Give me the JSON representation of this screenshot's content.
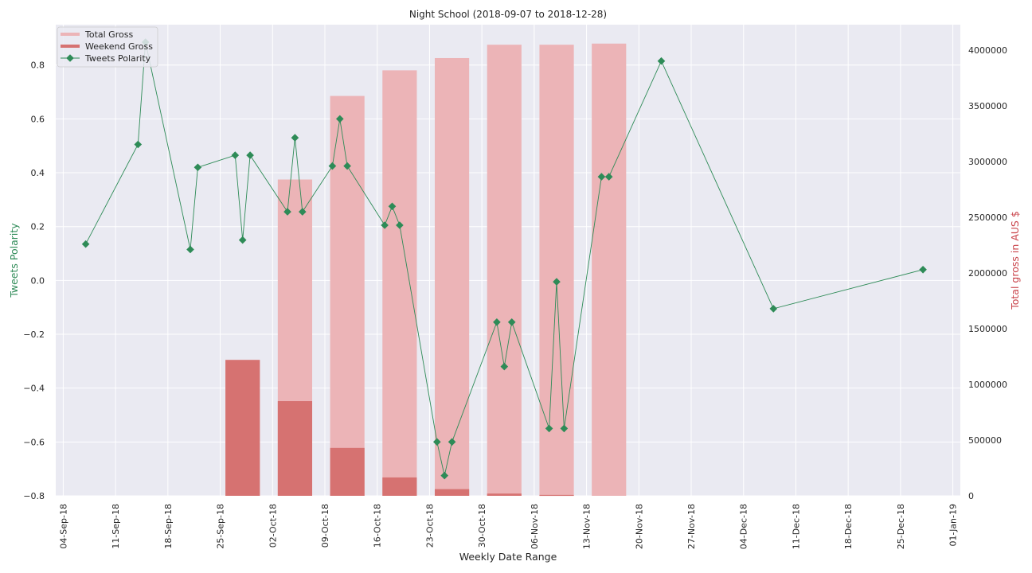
{
  "chart_data": {
    "type": "bar",
    "title": "Night School (2018-09-07 to 2018-12-28)",
    "xlabel": "Weekly Date Range",
    "ylabel_left": "Tweets Polarity",
    "ylabel_right": "Total gross in AUS $",
    "grid": true,
    "legend_position": "top-left",
    "colors": {
      "plot_background": "#eaeaf2",
      "grid": "#ffffff",
      "total_gross": "#ecb4b7",
      "weekend_gross": "#d67271",
      "polarity": "#2e8b57",
      "polarity_label": "#2e8b57",
      "gross_label": "#c9434a"
    },
    "x_date_range": [
      "2018-09-03",
      "2019-01-02"
    ],
    "x_ticks": [
      "2018-09-04",
      "2018-09-11",
      "2018-09-18",
      "2018-09-25",
      "2018-10-02",
      "2018-10-09",
      "2018-10-16",
      "2018-10-23",
      "2018-10-30",
      "2018-11-06",
      "2018-11-13",
      "2018-11-20",
      "2018-11-27",
      "2018-12-04",
      "2018-12-11",
      "2018-12-18",
      "2018-12-25",
      "2019-01-01"
    ],
    "x_tick_labels": [
      "04-Sep-18",
      "11-Sep-18",
      "18-Sep-18",
      "25-Sep-18",
      "02-Oct-18",
      "09-Oct-18",
      "16-Oct-18",
      "23-Oct-18",
      "30-Oct-18",
      "06-Nov-18",
      "13-Nov-18",
      "20-Nov-18",
      "27-Nov-18",
      "04-Dec-18",
      "11-Dec-18",
      "18-Dec-18",
      "25-Dec-18",
      "01-Jan-19"
    ],
    "y_left_lim": [
      -0.8,
      0.95
    ],
    "y_left_ticks": [
      -0.8,
      -0.6,
      -0.4,
      -0.2,
      0.0,
      0.2,
      0.4,
      0.6,
      0.8
    ],
    "y_left_tick_labels": [
      "−0.8",
      "−0.6",
      "−0.4",
      "−0.2",
      "0.0",
      "0.2",
      "0.4",
      "0.6",
      "0.8"
    ],
    "y_right_lim": [
      0,
      4230000
    ],
    "y_right_ticks": [
      0,
      500000,
      1000000,
      1500000,
      2000000,
      2500000,
      3000000,
      3500000,
      4000000
    ],
    "y_right_tick_labels": [
      "0",
      "500000",
      "1000000",
      "1500000",
      "2000000",
      "2500000",
      "3000000",
      "3500000",
      "4000000"
    ],
    "series": [
      {
        "name": "Total Gross",
        "type": "bar",
        "axis": "right",
        "x": [
          "2018-09-28",
          "2018-10-05",
          "2018-10-12",
          "2018-10-19",
          "2018-10-26",
          "2018-11-02",
          "2018-11-09",
          "2018-11-16"
        ],
        "values": [
          1220000,
          2840000,
          3590000,
          3820000,
          3930000,
          4050000,
          4050000,
          4060000
        ]
      },
      {
        "name": "Weekend Gross",
        "type": "bar",
        "axis": "right",
        "x": [
          "2018-09-28",
          "2018-10-05",
          "2018-10-12",
          "2018-10-19",
          "2018-10-26",
          "2018-11-02",
          "2018-11-09",
          "2018-11-16"
        ],
        "values": [
          1220000,
          850000,
          430000,
          165000,
          60000,
          20000,
          8000,
          0
        ]
      },
      {
        "name": "Tweets Polarity",
        "type": "line",
        "axis": "left",
        "x": [
          "2018-09-07",
          "2018-09-14",
          "2018-09-15",
          "2018-09-21",
          "2018-09-22",
          "2018-09-27",
          "2018-09-28",
          "2018-09-29",
          "2018-10-04",
          "2018-10-05",
          "2018-10-06",
          "2018-10-10",
          "2018-10-11",
          "2018-10-12",
          "2018-10-17",
          "2018-10-18",
          "2018-10-19",
          "2018-10-24",
          "2018-10-25",
          "2018-10-26",
          "2018-11-01",
          "2018-11-02",
          "2018-11-03",
          "2018-11-08",
          "2018-11-09",
          "2018-11-10",
          "2018-11-15",
          "2018-11-16",
          "2018-11-23",
          "2018-12-08",
          "2018-12-28"
        ],
        "values": [
          0.135,
          0.505,
          0.885,
          0.115,
          0.42,
          0.465,
          0.15,
          0.465,
          0.255,
          0.53,
          0.255,
          0.425,
          0.6,
          0.425,
          0.205,
          0.275,
          0.205,
          -0.6,
          -0.725,
          -0.6,
          -0.155,
          -0.32,
          -0.155,
          -0.55,
          -0.005,
          -0.55,
          0.385,
          0.385,
          0.815,
          -0.105,
          0.04
        ]
      }
    ]
  }
}
